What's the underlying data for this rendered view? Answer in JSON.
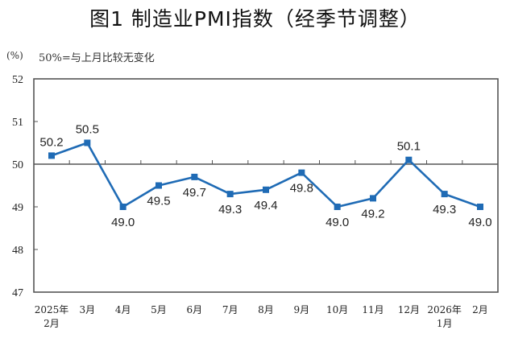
{
  "title": "图1  制造业PMI指数（经季节调整）",
  "unit_label": "(%)",
  "note": "50%=与上月比较无变化",
  "colors": {
    "line": "#1f6bb5",
    "axis": "#555555",
    "text": "#222222"
  },
  "chart_data": {
    "type": "line",
    "title": "图1  制造业PMI指数（经季节调整）",
    "xlabel": "",
    "ylabel": "(%)",
    "ylim": [
      47,
      52
    ],
    "yticks": [
      47,
      48,
      49,
      50,
      51,
      52
    ],
    "reference_line": {
      "y": 50,
      "label": "50%=与上月比较无变化"
    },
    "grid": false,
    "legend": null,
    "categories": [
      "2025年\n2月",
      "3月",
      "4月",
      "5月",
      "6月",
      "7月",
      "8月",
      "9月",
      "10月",
      "11月",
      "12月",
      "2026年\n1月",
      "2月"
    ],
    "series": [
      {
        "name": "制造业PMI",
        "values": [
          50.2,
          50.5,
          49.0,
          49.5,
          49.7,
          49.3,
          49.4,
          49.8,
          49.0,
          49.2,
          50.1,
          49.3,
          49.0
        ],
        "labels": [
          "50.2",
          "50.5",
          "49.0",
          "49.5",
          "49.7",
          "49.3",
          "49.4",
          "49.8",
          "49.0",
          "49.2",
          "50.1",
          "49.3",
          "49.0"
        ],
        "label_pos": [
          "above",
          "above",
          "below",
          "below",
          "below",
          "below",
          "below",
          "below",
          "below",
          "below",
          "above",
          "below",
          "below"
        ],
        "marker": "square"
      }
    ]
  }
}
